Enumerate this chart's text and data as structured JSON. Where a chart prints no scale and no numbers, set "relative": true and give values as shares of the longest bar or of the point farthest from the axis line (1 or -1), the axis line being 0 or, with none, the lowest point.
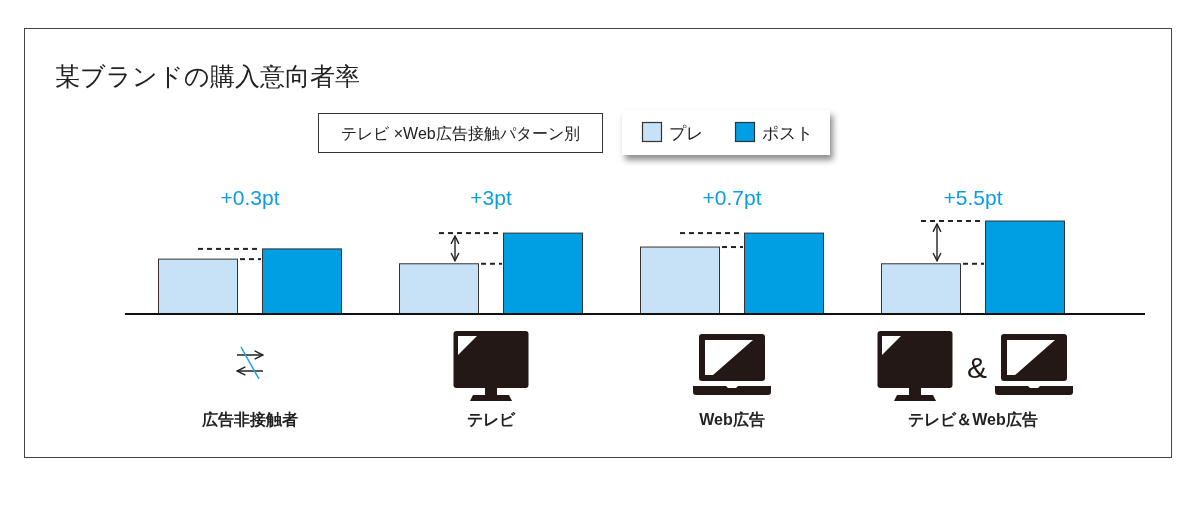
{
  "chart_data": {
    "type": "bar",
    "title": "某ブランドの購入意向者率",
    "subtitle": "テレビ ×Web広告接触パターン別",
    "categories": [
      "広告非接触者",
      "テレビ",
      "Web広告",
      "テレビ＆Web広告"
    ],
    "series": [
      {
        "name": "プレ",
        "color": "#c7e2f6",
        "values": [
          0.59,
          0.54,
          0.72,
          0.54
        ]
      },
      {
        "name": "ポスト",
        "color": "#009fe3",
        "values": [
          0.7,
          0.87,
          0.87,
          1
        ]
      }
    ],
    "relative": true,
    "legend": "top",
    "annotations": [
      "+0.3pt",
      "+3pt",
      "+0.7pt",
      "+5.5pt",
      "&"
    ]
  }
}
